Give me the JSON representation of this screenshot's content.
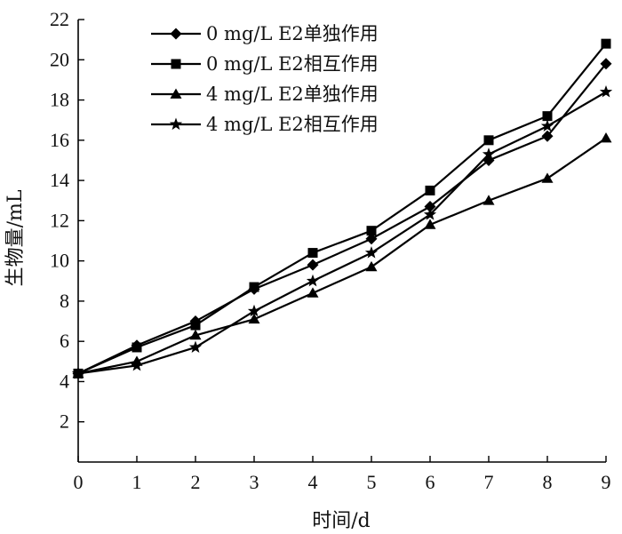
{
  "chart_data": {
    "type": "line",
    "title": "",
    "xlabel": "时间/d",
    "ylabel": "生物量/mL",
    "x": [
      0,
      1,
      2,
      3,
      4,
      5,
      6,
      7,
      8,
      9
    ],
    "xlim": [
      0,
      9
    ],
    "ylim": [
      0,
      22
    ],
    "xticks": [
      0,
      1,
      2,
      3,
      4,
      5,
      6,
      7,
      8,
      9
    ],
    "yticks": [
      2,
      4,
      6,
      8,
      10,
      12,
      14,
      16,
      18,
      20,
      22
    ],
    "grid": false,
    "legend_position": "top-left",
    "series": [
      {
        "name": "0 mg/L E2单独作用",
        "marker": "diamond",
        "color": "#000000",
        "values": [
          4.4,
          5.8,
          7.0,
          8.6,
          9.8,
          11.1,
          12.7,
          15.0,
          16.2,
          19.8
        ]
      },
      {
        "name": "0 mg/L E2相互作用",
        "marker": "square",
        "color": "#000000",
        "values": [
          4.4,
          5.7,
          6.8,
          8.7,
          10.4,
          11.5,
          13.5,
          16.0,
          17.2,
          20.8
        ]
      },
      {
        "name": "4 mg/L E2单独作用",
        "marker": "triangle",
        "color": "#000000",
        "values": [
          4.4,
          5.0,
          6.3,
          7.1,
          8.4,
          9.7,
          11.8,
          13.0,
          14.1,
          16.1
        ]
      },
      {
        "name": "4 mg/L E2相互作用",
        "marker": "star",
        "color": "#000000",
        "values": [
          4.4,
          4.8,
          5.7,
          7.5,
          9.0,
          10.4,
          12.3,
          15.3,
          16.7,
          18.4
        ]
      }
    ]
  }
}
